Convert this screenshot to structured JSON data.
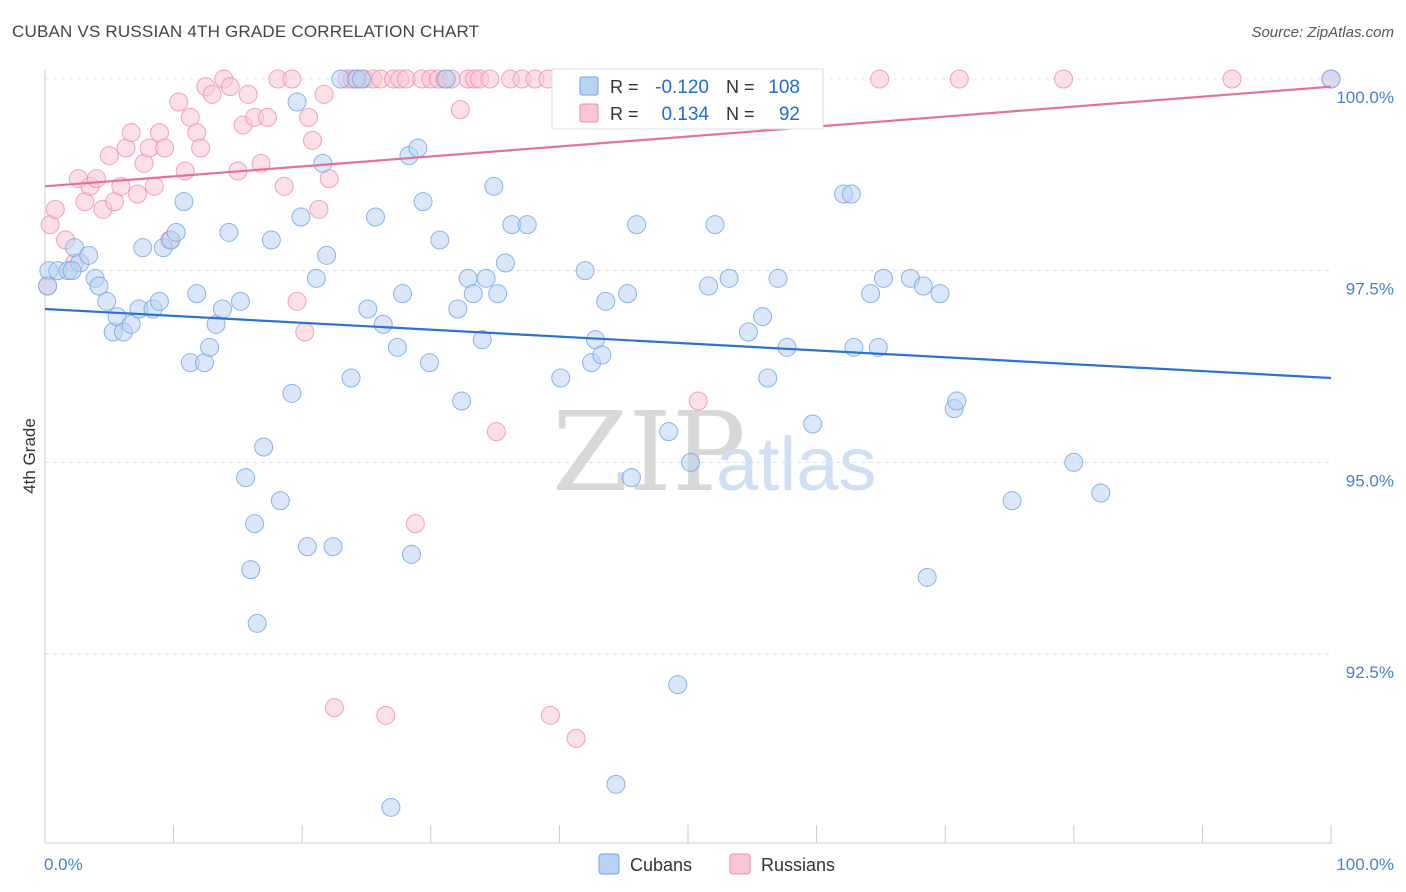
{
  "title": "CUBAN VS RUSSIAN 4TH GRADE CORRELATION CHART",
  "source": "Source: ZipAtlas.com",
  "watermark": {
    "zip": "ZIP",
    "atlas": "atlas"
  },
  "colors": {
    "cubans": "#6fa3e6",
    "cubans_fill": "#b9d3f3",
    "cubans_line": "#2a73d0",
    "russians": "#f08cab",
    "russians_fill": "#f9c6d6",
    "russians_line": "#e5709a",
    "tick_text": "#4a7fcf"
  },
  "legend": {
    "items": [
      {
        "r_label": "R =",
        "r_value": "-0.120",
        "n_label": "N =",
        "n_value": "108"
      },
      {
        "r_label": "R =",
        "r_value": "0.134",
        "n_label": "N =",
        "n_value": "92"
      }
    ],
    "bottom": [
      "Cubans",
      "Russians"
    ]
  },
  "chart_data": {
    "type": "scatter",
    "xlabel": "",
    "ylabel": "4th Grade",
    "xlim": [
      0,
      100
    ],
    "ylim": [
      90.0,
      100.2
    ],
    "x_tick_labels": [
      "0.0%",
      "100.0%"
    ],
    "y_ticks": [
      {
        "value": 100.0,
        "label": "100.0%"
      },
      {
        "value": 97.5,
        "label": "97.5%"
      },
      {
        "value": 95.0,
        "label": "95.0%"
      },
      {
        "value": 92.5,
        "label": "92.5%"
      }
    ],
    "series": [
      {
        "name": "Cubans",
        "trend": {
          "x": [
            0,
            100
          ],
          "y": [
            97.0,
            96.1
          ]
        },
        "points": [
          [
            0.3,
            97.5
          ],
          [
            1.0,
            97.5
          ],
          [
            1.8,
            97.5
          ],
          [
            2.3,
            97.8
          ],
          [
            2.7,
            97.6
          ],
          [
            3.4,
            97.7
          ],
          [
            3.9,
            97.4
          ],
          [
            4.2,
            97.3
          ],
          [
            4.8,
            97.1
          ],
          [
            5.3,
            96.7
          ],
          [
            5.6,
            96.9
          ],
          [
            6.1,
            96.7
          ],
          [
            6.7,
            96.8
          ],
          [
            7.3,
            97.0
          ],
          [
            7.6,
            97.8
          ],
          [
            8.4,
            97.0
          ],
          [
            8.9,
            97.1
          ],
          [
            9.2,
            97.8
          ],
          [
            9.8,
            97.9
          ],
          [
            10.2,
            98.0
          ],
          [
            10.8,
            98.4
          ],
          [
            11.3,
            96.3
          ],
          [
            11.8,
            97.2
          ],
          [
            12.4,
            96.3
          ],
          [
            12.8,
            96.5
          ],
          [
            13.3,
            96.8
          ],
          [
            13.8,
            97.0
          ],
          [
            14.3,
            98.0
          ],
          [
            15.2,
            97.1
          ],
          [
            15.6,
            94.8
          ],
          [
            16.3,
            94.2
          ],
          [
            16.5,
            92.9
          ],
          [
            17.0,
            95.2
          ],
          [
            17.6,
            97.9
          ],
          [
            18.3,
            94.5
          ],
          [
            19.2,
            95.9
          ],
          [
            19.6,
            99.7
          ],
          [
            19.9,
            98.2
          ],
          [
            20.4,
            93.9
          ],
          [
            21.1,
            97.4
          ],
          [
            21.6,
            98.9
          ],
          [
            21.9,
            97.7
          ],
          [
            22.4,
            93.9
          ],
          [
            23.0,
            100.0
          ],
          [
            23.8,
            96.1
          ],
          [
            24.2,
            100.0
          ],
          [
            24.6,
            100.0
          ],
          [
            25.1,
            97.0
          ],
          [
            25.7,
            98.2
          ],
          [
            26.3,
            96.8
          ],
          [
            26.9,
            90.5
          ],
          [
            27.4,
            96.5
          ],
          [
            27.8,
            97.2
          ],
          [
            28.3,
            99.0
          ],
          [
            28.5,
            93.8
          ],
          [
            29.0,
            99.1
          ],
          [
            29.4,
            98.4
          ],
          [
            29.9,
            96.3
          ],
          [
            30.7,
            97.9
          ],
          [
            31.2,
            100.0
          ],
          [
            32.1,
            97.0
          ],
          [
            32.4,
            95.8
          ],
          [
            32.9,
            97.4
          ],
          [
            33.3,
            97.2
          ],
          [
            34.0,
            96.6
          ],
          [
            34.3,
            97.4
          ],
          [
            34.9,
            98.6
          ],
          [
            35.2,
            97.2
          ],
          [
            35.8,
            97.6
          ],
          [
            36.3,
            98.1
          ],
          [
            37.5,
            98.1
          ],
          [
            40.1,
            96.1
          ],
          [
            42.0,
            97.5
          ],
          [
            42.5,
            96.3
          ],
          [
            42.8,
            96.6
          ],
          [
            43.3,
            96.4
          ],
          [
            43.6,
            97.1
          ],
          [
            44.4,
            90.8
          ],
          [
            45.3,
            97.2
          ],
          [
            45.6,
            94.8
          ],
          [
            46.0,
            98.1
          ],
          [
            48.5,
            95.4
          ],
          [
            49.2,
            92.1
          ],
          [
            50.2,
            95.0
          ],
          [
            51.6,
            97.3
          ],
          [
            52.1,
            98.1
          ],
          [
            53.2,
            97.4
          ],
          [
            54.7,
            96.7
          ],
          [
            55.8,
            96.9
          ],
          [
            56.2,
            96.1
          ],
          [
            57.0,
            97.4
          ],
          [
            57.7,
            96.5
          ],
          [
            59.7,
            95.5
          ],
          [
            62.1,
            98.5
          ],
          [
            62.7,
            98.5
          ],
          [
            62.9,
            96.5
          ],
          [
            64.2,
            97.2
          ],
          [
            64.8,
            96.5
          ],
          [
            65.2,
            97.4
          ],
          [
            67.3,
            97.4
          ],
          [
            68.3,
            97.3
          ],
          [
            68.6,
            93.5
          ],
          [
            69.6,
            97.2
          ],
          [
            70.7,
            95.7
          ],
          [
            70.9,
            95.8
          ],
          [
            75.2,
            94.5
          ],
          [
            80.0,
            95.0
          ],
          [
            82.1,
            94.6
          ],
          [
            100.0,
            100.0
          ],
          [
            0.2,
            97.3
          ],
          [
            2.1,
            97.5
          ],
          [
            16.0,
            93.6
          ]
        ]
      },
      {
        "name": "Russians",
        "trend": {
          "x": [
            0,
            100
          ],
          "y": [
            98.6,
            99.9
          ]
        },
        "points": [
          [
            0.2,
            97.3
          ],
          [
            0.4,
            98.1
          ],
          [
            0.8,
            98.3
          ],
          [
            1.6,
            97.9
          ],
          [
            2.3,
            97.6
          ],
          [
            2.6,
            98.7
          ],
          [
            3.1,
            98.4
          ],
          [
            3.5,
            98.6
          ],
          [
            4.0,
            98.7
          ],
          [
            4.5,
            98.3
          ],
          [
            5.0,
            99.0
          ],
          [
            5.4,
            98.4
          ],
          [
            5.9,
            98.6
          ],
          [
            6.3,
            99.1
          ],
          [
            6.7,
            99.3
          ],
          [
            7.2,
            98.5
          ],
          [
            7.7,
            98.9
          ],
          [
            8.1,
            99.1
          ],
          [
            8.5,
            98.6
          ],
          [
            8.9,
            99.3
          ],
          [
            9.3,
            99.1
          ],
          [
            9.7,
            97.9
          ],
          [
            10.4,
            99.7
          ],
          [
            10.9,
            98.8
          ],
          [
            11.3,
            99.5
          ],
          [
            11.8,
            99.3
          ],
          [
            12.1,
            99.1
          ],
          [
            12.5,
            99.9
          ],
          [
            13.0,
            99.8
          ],
          [
            13.9,
            100.0
          ],
          [
            14.4,
            99.9
          ],
          [
            15.0,
            98.8
          ],
          [
            15.4,
            99.4
          ],
          [
            15.8,
            99.8
          ],
          [
            16.3,
            99.5
          ],
          [
            16.8,
            98.9
          ],
          [
            17.3,
            99.5
          ],
          [
            18.1,
            100.0
          ],
          [
            18.6,
            98.6
          ],
          [
            19.2,
            100.0
          ],
          [
            19.6,
            97.1
          ],
          [
            20.2,
            96.7
          ],
          [
            20.5,
            99.5
          ],
          [
            20.8,
            99.2
          ],
          [
            21.3,
            98.3
          ],
          [
            21.7,
            99.8
          ],
          [
            22.1,
            98.7
          ],
          [
            22.5,
            91.8
          ],
          [
            23.5,
            100.0
          ],
          [
            23.9,
            100.0
          ],
          [
            24.3,
            100.0
          ],
          [
            24.8,
            100.0
          ],
          [
            25.5,
            100.0
          ],
          [
            26.1,
            100.0
          ],
          [
            26.5,
            91.7
          ],
          [
            27.1,
            100.0
          ],
          [
            27.6,
            100.0
          ],
          [
            28.1,
            100.0
          ],
          [
            28.8,
            94.2
          ],
          [
            29.3,
            100.0
          ],
          [
            30.0,
            100.0
          ],
          [
            30.6,
            100.0
          ],
          [
            31.1,
            100.0
          ],
          [
            31.6,
            100.0
          ],
          [
            32.3,
            99.6
          ],
          [
            32.9,
            100.0
          ],
          [
            33.4,
            100.0
          ],
          [
            33.8,
            100.0
          ],
          [
            34.6,
            100.0
          ],
          [
            35.1,
            95.4
          ],
          [
            36.2,
            100.0
          ],
          [
            37.1,
            100.0
          ],
          [
            38.1,
            100.0
          ],
          [
            39.1,
            100.0
          ],
          [
            39.3,
            91.7
          ],
          [
            40.6,
            100.0
          ],
          [
            41.6,
            100.0
          ],
          [
            41.3,
            91.4
          ],
          [
            43.6,
            100.0
          ],
          [
            45.4,
            100.0
          ],
          [
            47.3,
            100.0
          ],
          [
            50.8,
            95.8
          ],
          [
            51.6,
            100.0
          ],
          [
            53.2,
            100.0
          ],
          [
            54.3,
            100.0
          ],
          [
            55.9,
            100.0
          ],
          [
            59.6,
            100.0
          ],
          [
            64.9,
            100.0
          ],
          [
            71.1,
            100.0
          ],
          [
            79.2,
            100.0
          ],
          [
            92.3,
            100.0
          ],
          [
            100.0,
            100.0
          ]
        ]
      }
    ]
  }
}
